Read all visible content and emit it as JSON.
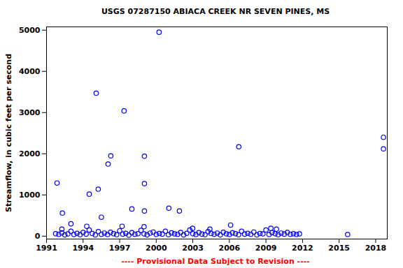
{
  "chart_data": {
    "type": "scatter",
    "title": "USGS 07287150 ABIACA CREEK NR SEVEN PINES, MS",
    "subtitle": "---- Provisional Data Subject to Revision ----",
    "y_label": "Streamflow, in cubic feet per second",
    "x": [
      1991.86,
      1992.3,
      1993.0,
      1992.26,
      1994.5,
      1994.3,
      1995.07,
      1995.24,
      1995.5,
      1996.05,
      1996.27,
      1997.36,
      1997.2,
      1998.0,
      1999.03,
      1999.03,
      1999.03,
      1999.0,
      2000.23,
      2001.03,
      2001.9,
      2002.98,
      2004.4,
      2006.1,
      2006.77,
      2009.4,
      2009.86,
      2015.7,
      2018.64,
      2018.64,
      1991.75,
      1992.0,
      1992.25,
      1992.5,
      1992.75,
      1993.0,
      1993.25,
      1993.5,
      1993.75,
      1994.0,
      1994.25,
      1994.5,
      1994.75,
      1995.0,
      1995.25,
      1995.5,
      1995.75,
      1996.0,
      1996.25,
      1996.5,
      1996.75,
      1997.0,
      1997.25,
      1997.5,
      1997.75,
      1998.0,
      1998.25,
      1998.5,
      1998.75,
      1999.0,
      1999.25,
      1999.5,
      1999.75,
      2000.0,
      2000.25,
      2000.5,
      2000.75,
      2001.0,
      2001.25,
      2001.5,
      2001.75,
      2002.0,
      2002.25,
      2002.5,
      2002.75,
      2003.0,
      2003.25,
      2003.5,
      2003.75,
      2004.0,
      2004.25,
      2004.5,
      2004.75,
      2005.0,
      2005.25,
      2005.5,
      2005.75,
      2006.0,
      2006.25,
      2006.5,
      2006.75,
      2007.0,
      2007.25,
      2007.5,
      2007.75,
      2008.0,
      2008.25,
      2008.5,
      2008.75,
      2009.0,
      2009.25,
      2009.5,
      2009.75,
      2010.0,
      2010.25,
      2010.5,
      2010.75,
      2011.0,
      2011.25,
      2011.5,
      2011.75
    ],
    "values": [
      1290,
      560,
      300,
      170,
      1020,
      240,
      3470,
      1140,
      460,
      1750,
      1950,
      3040,
      240,
      660,
      1940,
      1275,
      610,
      230,
      4950,
      680,
      610,
      190,
      170,
      270,
      2170,
      190,
      170,
      40,
      2400,
      2120,
      60,
      45,
      80,
      30,
      55,
      120,
      40,
      70,
      35,
      90,
      50,
      150,
      65,
      30,
      110,
      45,
      75,
      40,
      95,
      60,
      35,
      130,
      50,
      70,
      25,
      85,
      45,
      60,
      140,
      55,
      30,
      75,
      100,
      40,
      65,
      50,
      120,
      35,
      80,
      55,
      45,
      90,
      30,
      70,
      150,
      60,
      40,
      85,
      50,
      35,
      110,
      65,
      45,
      75,
      30,
      95,
      55,
      40,
      80,
      60,
      35,
      120,
      50,
      70,
      45,
      100,
      30,
      65,
      55,
      150,
      40,
      85,
      60,
      35,
      75,
      50,
      90,
      45,
      60,
      40,
      55
    ],
    "color": "#0000ff",
    "marker": "circle",
    "xlim": [
      1991,
      2018.95
    ],
    "xticks": [
      1991,
      1994,
      1997,
      2000,
      2003,
      2006,
      2009,
      2012,
      2015,
      2018
    ],
    "ylim": [
      -70,
      5080
    ],
    "yticks": [
      0,
      1000,
      2000,
      3000,
      4000,
      5000
    ],
    "grid": false
  }
}
